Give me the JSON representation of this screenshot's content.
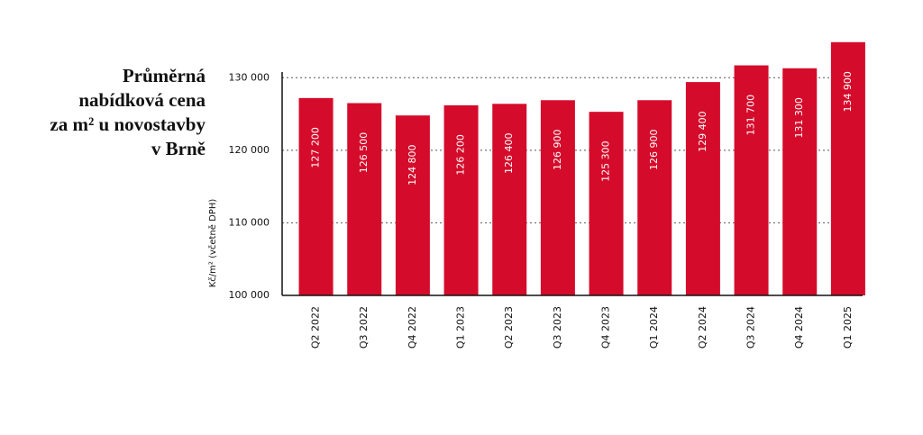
{
  "chart_data": {
    "type": "bar",
    "title": [
      "Průměrná",
      "nabídková cena",
      "za m² u novostavby",
      "v Brně"
    ],
    "y_label": "Kč/m² (včetně DPH)",
    "categories": [
      "Q2 2022",
      "Q3 2022",
      "Q4 2022",
      "Q1 2023",
      "Q2 2023",
      "Q3 2023",
      "Q4 2023",
      "Q1 2024",
      "Q2 2024",
      "Q3 2024",
      "Q4 2024",
      "Q1 2025"
    ],
    "values": [
      127200,
      126500,
      124800,
      126200,
      126400,
      126900,
      125300,
      126900,
      129400,
      131700,
      131300,
      134900
    ],
    "value_labels": [
      "127 200",
      "126 500",
      "124 800",
      "126 200",
      "126 400",
      "126 900",
      "125 300",
      "126 900",
      "129 400",
      "131 700",
      "131 300",
      "134 900"
    ],
    "color": "#d50b2b",
    "ylim": [
      100000,
      135000
    ],
    "yticks": [
      {
        "value": 100000,
        "label": "100 000"
      },
      {
        "value": 110000,
        "label": "110 000"
      },
      {
        "value": 120000,
        "label": "120 000"
      },
      {
        "value": 130000,
        "label": "130 000"
      }
    ],
    "grid": true
  }
}
